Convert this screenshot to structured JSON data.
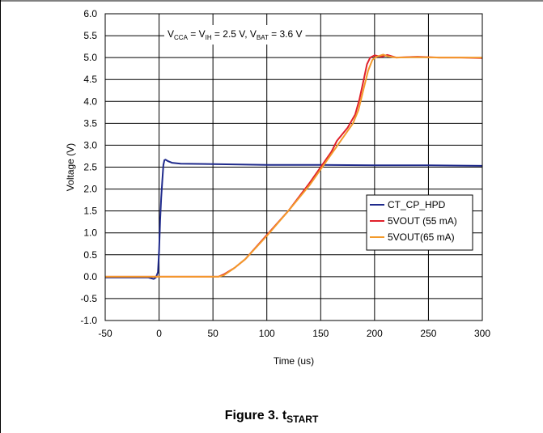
{
  "figure": {
    "caption_prefix": "Figure 3. t",
    "caption_sub": "START"
  },
  "chart_data": {
    "type": "line",
    "title": "",
    "annotation": {
      "parts": [
        {
          "t": "V",
          "sub": false
        },
        {
          "t": "CCA",
          "sub": true
        },
        {
          "t": " = V",
          "sub": false
        },
        {
          "t": "IH",
          "sub": true
        },
        {
          "t": " = 2.5 V, V",
          "sub": false
        },
        {
          "t": "BAT",
          "sub": true
        },
        {
          "t": " = 3.6 V",
          "sub": false
        }
      ]
    },
    "xlabel": "Time (us)",
    "ylabel": "Voltage (V)",
    "xlim": [
      -50,
      300
    ],
    "ylim": [
      -1.0,
      6.0
    ],
    "x_ticks": [
      -50,
      0,
      50,
      100,
      150,
      200,
      250,
      300
    ],
    "y_ticks": [
      -1.0,
      -0.5,
      0.0,
      0.5,
      1.0,
      1.5,
      2.0,
      2.5,
      3.0,
      3.5,
      4.0,
      4.5,
      5.0,
      5.5,
      6.0
    ],
    "grid": true,
    "legend_position": "right-middle",
    "series": [
      {
        "name": "CT_CP_HPD",
        "color": "#1f2a8c",
        "x": [
          -50,
          -10,
          -5,
          -3,
          -1,
          0,
          1,
          2,
          3,
          4,
          5,
          6,
          8,
          12,
          20,
          50,
          100,
          150,
          200,
          250,
          300
        ],
        "y": [
          -0.02,
          -0.02,
          -0.05,
          -0.02,
          0.1,
          0.6,
          1.3,
          1.8,
          2.2,
          2.55,
          2.66,
          2.67,
          2.64,
          2.6,
          2.58,
          2.57,
          2.55,
          2.55,
          2.54,
          2.54,
          2.53
        ]
      },
      {
        "name": "5VOUT (55 mA)",
        "color": "#e0212b",
        "x": [
          -50,
          0,
          50,
          55,
          60,
          70,
          80,
          100,
          120,
          140,
          150,
          160,
          165,
          175,
          182,
          186,
          190,
          193,
          196,
          200,
          206,
          212,
          220,
          240,
          260,
          280,
          300
        ],
        "y": [
          0.0,
          0.0,
          0.0,
          0.0,
          0.05,
          0.2,
          0.4,
          0.95,
          1.5,
          2.15,
          2.5,
          2.85,
          3.1,
          3.4,
          3.7,
          4.05,
          4.5,
          4.85,
          5.0,
          5.05,
          5.02,
          5.06,
          5.0,
          5.02,
          5.0,
          5.0,
          4.99
        ]
      },
      {
        "name": "5VOUT(65 mA)",
        "color": "#f39a2b",
        "x": [
          -50,
          0,
          50,
          55,
          60,
          70,
          80,
          100,
          120,
          140,
          150,
          160,
          170,
          180,
          185,
          190,
          194,
          198,
          202,
          208,
          212,
          220,
          240,
          260,
          280,
          300
        ],
        "y": [
          0.0,
          0.0,
          0.0,
          0.0,
          0.03,
          0.2,
          0.4,
          0.93,
          1.5,
          2.1,
          2.45,
          2.8,
          3.15,
          3.5,
          3.8,
          4.3,
          4.7,
          4.95,
          5.02,
          5.07,
          5.03,
          5.0,
          5.01,
          5.0,
          5.0,
          5.0
        ]
      }
    ]
  }
}
